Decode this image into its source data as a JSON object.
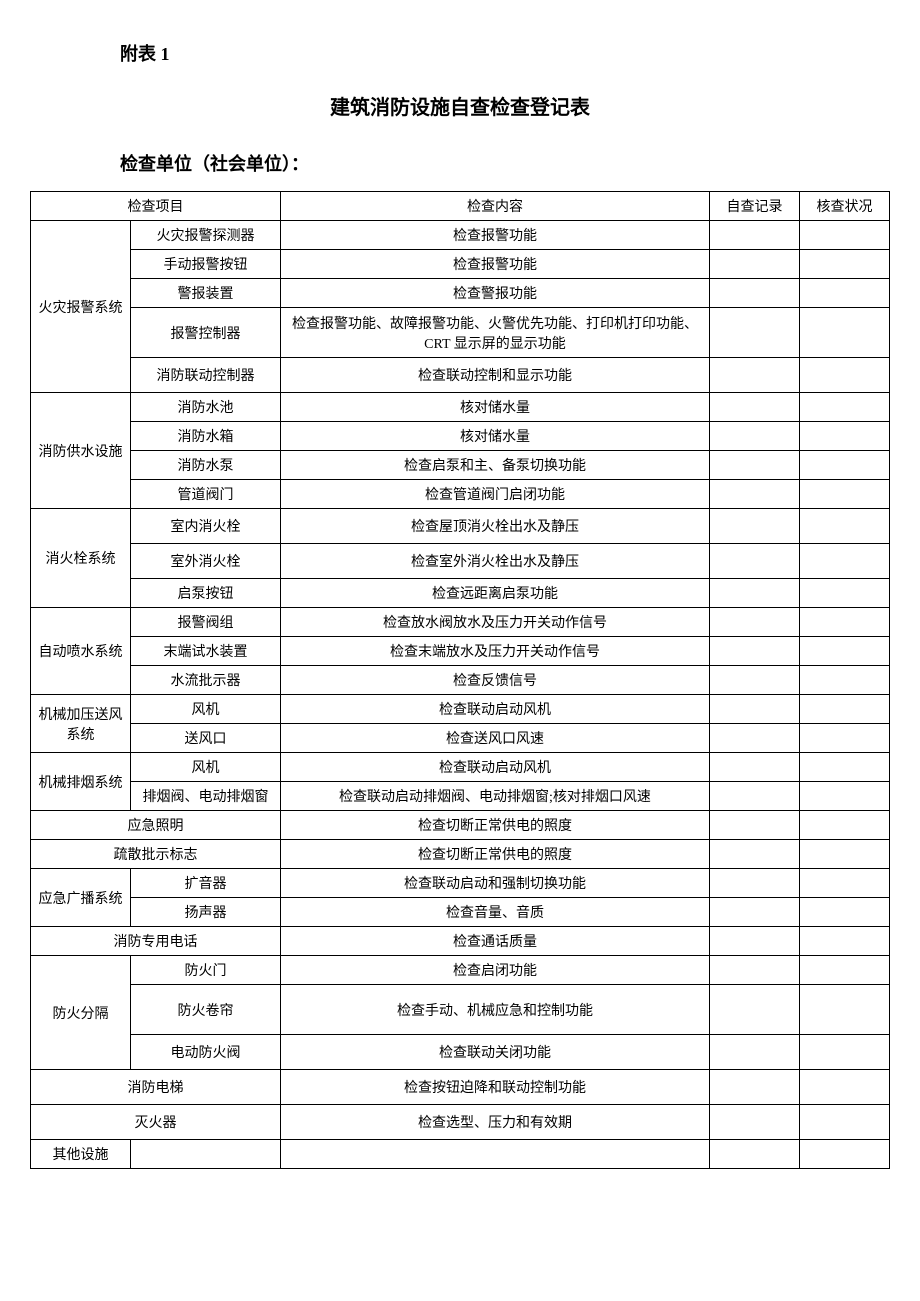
{
  "attachment_label": "附表 1",
  "title": "建筑消防设施自查检查登记表",
  "subtitle": "检查单位（社会单位）：",
  "headers": {
    "project": "检查项目",
    "content": "检查内容",
    "self_record": "自查记录",
    "check_status": "核查状况"
  },
  "rows": [
    {
      "cat": "火灾报警系统",
      "cat_rowspan": 5,
      "item": "火灾报警探测器",
      "content": "检查报警功能"
    },
    {
      "item": "手动报警按钮",
      "content": "检查报警功能"
    },
    {
      "item": "警报装置",
      "content": "检查警报功能"
    },
    {
      "item": "报警控制器",
      "content": "检查报警功能、故障报警功能、火警优先功能、打印机打印功能、CRT 显示屏的显示功能",
      "tall": true
    },
    {
      "item": "消防联动控制器",
      "content": "检查联动控制和显示功能",
      "medium": true
    },
    {
      "cat": "消防供水设施",
      "cat_rowspan": 4,
      "item": "消防水池",
      "content": "核对储水量"
    },
    {
      "item": "消防水箱",
      "content": "核对储水量"
    },
    {
      "item": "消防水泵",
      "content": "检查启泵和主、备泵切换功能"
    },
    {
      "item": "管道阀门",
      "content": "检查管道阀门启闭功能"
    },
    {
      "cat": "消火栓系统",
      "cat_rowspan": 3,
      "item": "室内消火栓",
      "content": "检查屋顶消火栓出水及静压",
      "medium": true
    },
    {
      "item": "室外消火栓",
      "content": "检查室外消火栓出水及静压",
      "medium": true
    },
    {
      "item": "启泵按钮",
      "content": "检查远距离启泵功能"
    },
    {
      "cat": "自动喷水系统",
      "cat_rowspan": 3,
      "item": "报警阀组",
      "content": "检查放水阀放水及压力开关动作信号"
    },
    {
      "item": "末端试水装置",
      "content": "检查末端放水及压力开关动作信号"
    },
    {
      "item": "水流批示器",
      "content": "检查反馈信号"
    },
    {
      "cat": "机械加压送风系统",
      "cat_rowspan": 2,
      "item": "风机",
      "content": "检查联动启动风机"
    },
    {
      "item": "送风口",
      "content": "检查送风口风速"
    },
    {
      "cat": "机械排烟系统",
      "cat_rowspan": 2,
      "item": "风机",
      "content": "检查联动启动风机"
    },
    {
      "item": "排烟阀、电动排烟窗",
      "content": "检查联动启动排烟阀、电动排烟窗;核对排烟口风速"
    },
    {
      "merged": "应急照明",
      "content": "检查切断正常供电的照度"
    },
    {
      "merged": "疏散批示标志",
      "content": "检查切断正常供电的照度"
    },
    {
      "cat": "应急广播系统",
      "cat_rowspan": 2,
      "item": "扩音器",
      "content": "检查联动启动和强制切换功能"
    },
    {
      "item": "扬声器",
      "content": "检查音量、音质"
    },
    {
      "merged": "消防专用电话",
      "content": "检查通话质量"
    },
    {
      "cat": "防火分隔",
      "cat_rowspan": 3,
      "item": "防火门",
      "content": "检查启闭功能"
    },
    {
      "item": "防火卷帘",
      "content": "检查手动、机械应急和控制功能",
      "tall": true
    },
    {
      "item": "电动防火阀",
      "content": "检查联动关闭功能",
      "medium": true
    },
    {
      "merged": "消防电梯",
      "content": "检查按钮迫降和联动控制功能",
      "medium": true
    },
    {
      "merged": "灭火器",
      "content": "检查选型、压力和有效期",
      "medium": true
    },
    {
      "cat_single": "其他设施",
      "item": "",
      "content": ""
    }
  ]
}
